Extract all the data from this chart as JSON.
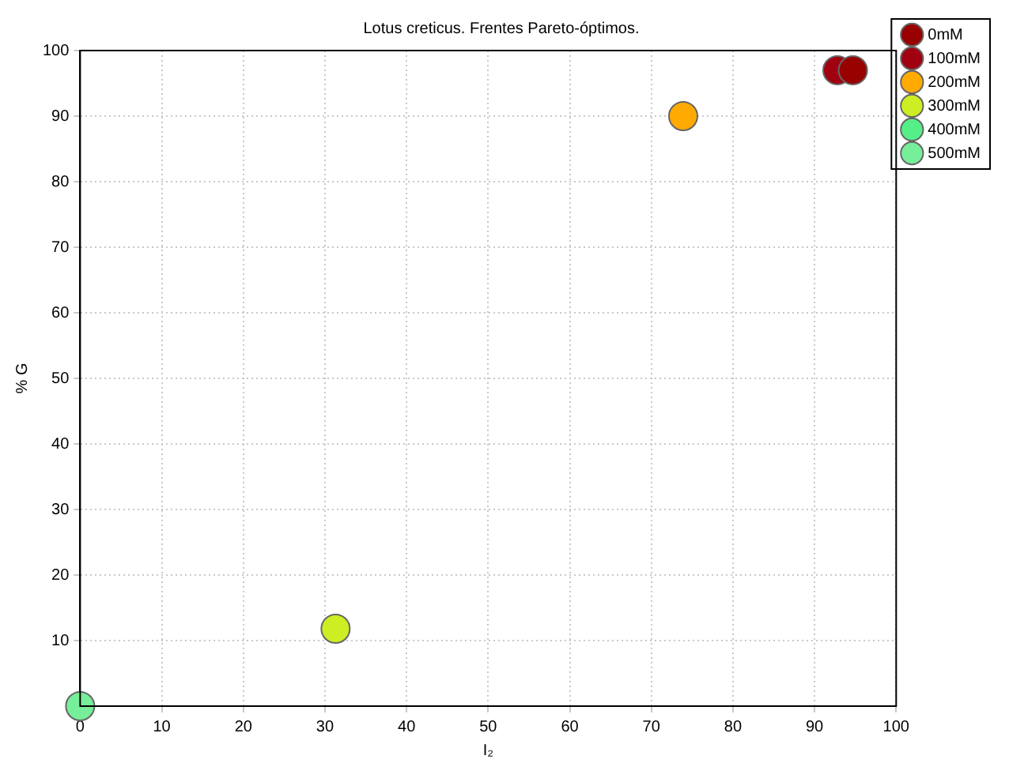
{
  "chart_data": {
    "type": "scatter",
    "title": "Lotus creticus. Frentes Pareto-óptimos.",
    "xlabel": "I₂",
    "ylabel": "% G",
    "xlim": [
      0,
      100
    ],
    "xticks": [
      0,
      10,
      20,
      30,
      40,
      50,
      60,
      70,
      80,
      90,
      100
    ],
    "ylim": [
      0,
      100
    ],
    "yticks": [
      {
        "value": 0,
        "label": null
      },
      10,
      20,
      30,
      40,
      50,
      60,
      70,
      80,
      90,
      100
    ],
    "grid": true,
    "legend": "top right",
    "marker": "circle",
    "series": [
      {
        "name": "0mM",
        "color": "#990000",
        "x": [
          94.7
        ],
        "values": [
          97
        ]
      },
      {
        "name": "100mM",
        "color": "#a00010",
        "x": [
          92.8
        ],
        "values": [
          97
        ]
      },
      {
        "name": "200mM",
        "color": "#ffaa00",
        "x": [
          73.9
        ],
        "values": [
          90
        ]
      },
      {
        "name": "300mM",
        "color": "#ccee22",
        "x": [
          31.3
        ],
        "values": [
          11.8
        ]
      },
      {
        "name": "400mM",
        "color": "#55ee88",
        "x": [
          null
        ],
        "values": [
          null
        ]
      },
      {
        "name": "500mM",
        "color": "#77ee99",
        "x": [
          0
        ],
        "values": [
          0
        ]
      }
    ]
  }
}
